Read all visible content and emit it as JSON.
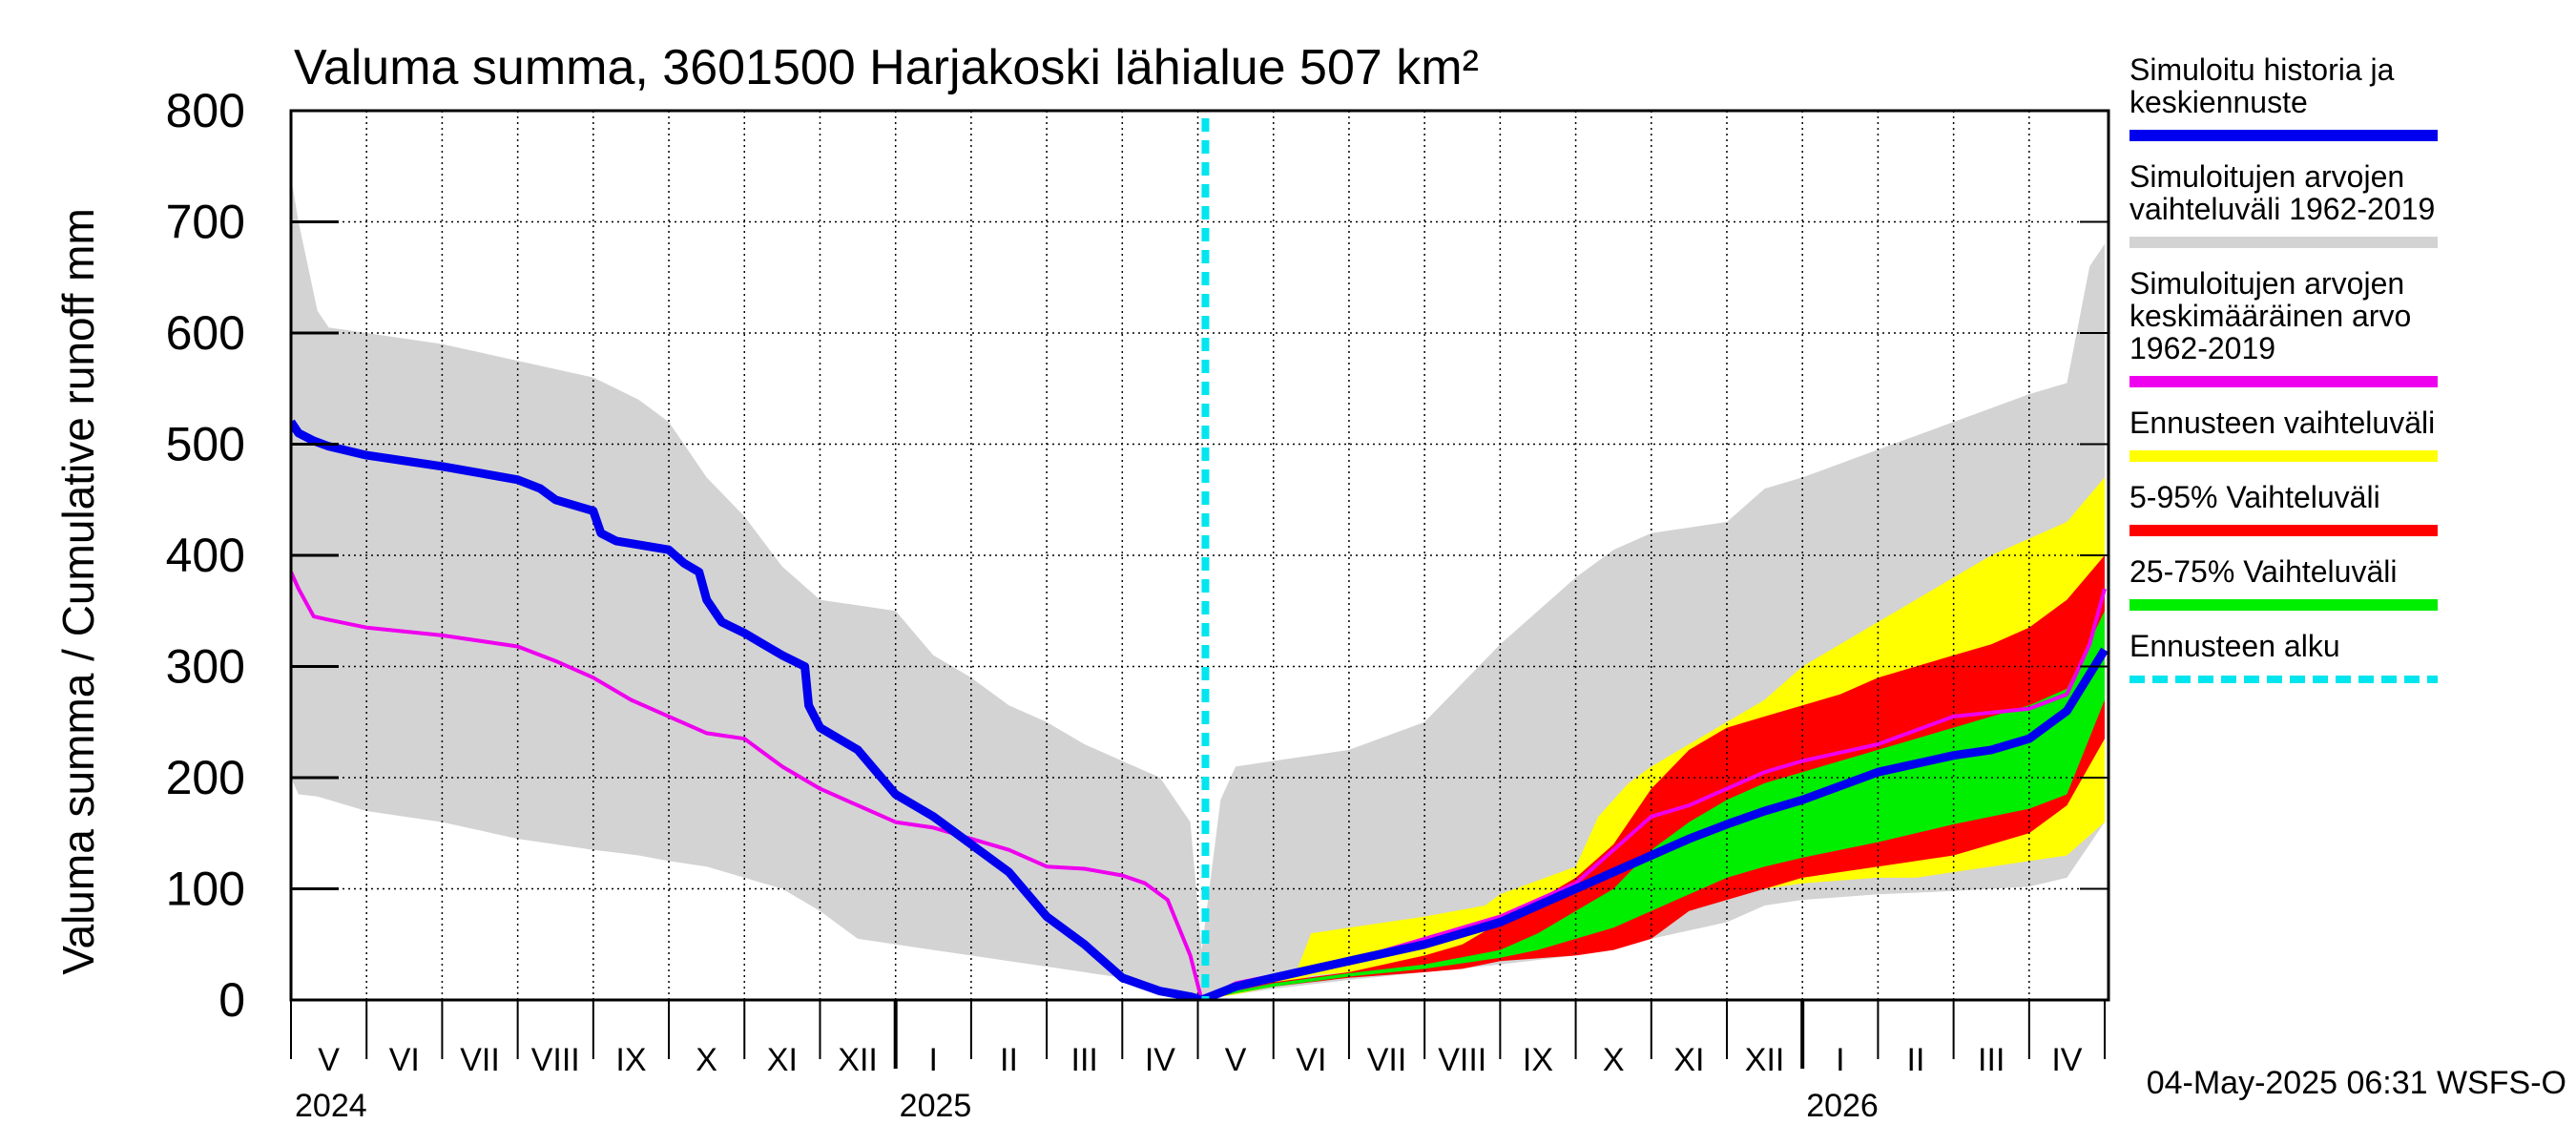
{
  "colors": {
    "history_band": "#d3d3d3",
    "forecast_range": "#ffff00",
    "range_5_95": "#ff0000",
    "range_25_75": "#00ee00",
    "simulated": "#0000ee",
    "mean": "#ee00ee",
    "forecast_start": "#00e5ee"
  },
  "chart_data": {
    "type": "area",
    "title": "Valuma summa, 3601500 Harjakoski lähialue 507 km²",
    "ylabel": "Valuma summa / Cumulative runoff    mm",
    "xlabel": "",
    "ylim": [
      0,
      800
    ],
    "yticks": [
      "0",
      "100",
      "200",
      "300",
      "400",
      "500",
      "600",
      "700",
      "800"
    ],
    "x_unit": "months since 2024-04-01",
    "xlim": [
      0,
      24.05
    ],
    "forecast_start": 12.1,
    "months": [
      "V",
      "VI",
      "VII",
      "VIII",
      "IX",
      "X",
      "XI",
      "XII",
      "I",
      "II",
      "III",
      "IV",
      "V",
      "VI",
      "VII",
      "VIII",
      "IX",
      "X",
      "XI",
      "XII",
      "I",
      "II",
      "III",
      "IV"
    ],
    "years": [
      {
        "label": "2024",
        "x": 0
      },
      {
        "label": "2025",
        "x": 8
      },
      {
        "label": "2026",
        "x": 20
      }
    ],
    "timestamp": "04-May-2025 06:31 WSFS-O",
    "legend": [
      {
        "id": "sim",
        "lines": [
          "Simuloitu historia ja",
          "keskiennuste"
        ],
        "style": "line",
        "color": "#0000ee"
      },
      {
        "id": "band",
        "lines": [
          "Simuloitujen arvojen",
          "vaihteluväli 1962-2019"
        ],
        "style": "line",
        "color": "#d3d3d3"
      },
      {
        "id": "mean",
        "lines": [
          "Simuloitujen arvojen",
          "keskimääräinen arvo",
          "   1962-2019"
        ],
        "style": "line",
        "color": "#ee00ee"
      },
      {
        "id": "frange",
        "lines": [
          "Ennusteen vaihteluväli"
        ],
        "style": "line",
        "color": "#ffff00"
      },
      {
        "id": "r595",
        "lines": [
          "5-95% Vaihteluväli"
        ],
        "style": "line",
        "color": "#ff0000"
      },
      {
        "id": "r2575",
        "lines": [
          "25-75% Vaihteluväli"
        ],
        "style": "line",
        "color": "#00ee00"
      },
      {
        "id": "fstart",
        "lines": [
          "Ennusteen alku"
        ],
        "style": "dashed",
        "color": "#00e5ee"
      }
    ],
    "series": [
      {
        "name": "Simuloitujen arvojen vaihteluväli 1962-2019",
        "kind": "band",
        "x": [
          0,
          0.1,
          0.35,
          0.5,
          1,
          2,
          3,
          4,
          4.6,
          5,
          5.5,
          6,
          6.5,
          7,
          7.5,
          8,
          8.5,
          9,
          9.5,
          10,
          10.5,
          11,
          11.5,
          11.9,
          12.05,
          12.3,
          12.5,
          13,
          14,
          15,
          16,
          17,
          17.5,
          18,
          19,
          19.5,
          20,
          21,
          22,
          23,
          23.5,
          23.8,
          24
        ],
        "upper": [
          740,
          700,
          620,
          605,
          600,
          590,
          575,
          560,
          540,
          520,
          470,
          435,
          390,
          360,
          355,
          350,
          310,
          290,
          265,
          250,
          230,
          215,
          200,
          160,
          45,
          180,
          210,
          215,
          225,
          250,
          320,
          380,
          405,
          420,
          430,
          460,
          470,
          495,
          520,
          545,
          555,
          660,
          680
        ],
        "lower": [
          200,
          185,
          183,
          180,
          170,
          160,
          145,
          135,
          130,
          125,
          120,
          110,
          100,
          80,
          55,
          50,
          45,
          40,
          35,
          30,
          25,
          20,
          12,
          5,
          0,
          3,
          5,
          10,
          18,
          25,
          32,
          40,
          45,
          55,
          70,
          85,
          90,
          95,
          98,
          102,
          110,
          140,
          160
        ]
      },
      {
        "name": "Ennusteen vaihteluväli",
        "kind": "band",
        "x": [
          12.05,
          12.5,
          13,
          13.3,
          13.5,
          14,
          15,
          15.8,
          16,
          17,
          17.3,
          17.7,
          18,
          18.5,
          19,
          19.5,
          20,
          21,
          21.5,
          22,
          22.5,
          23,
          23.5,
          24
        ],
        "upper": [
          0,
          8,
          18,
          25,
          60,
          65,
          75,
          85,
          95,
          120,
          165,
          195,
          210,
          230,
          250,
          270,
          300,
          340,
          360,
          380,
          400,
          415,
          430,
          470
        ],
        "lower": [
          0,
          5,
          12,
          17,
          22,
          25,
          30,
          35,
          38,
          45,
          50,
          60,
          70,
          90,
          95,
          100,
          105,
          110,
          110,
          115,
          120,
          125,
          130,
          160
        ]
      },
      {
        "name": "5-95% Vaihteluväli",
        "kind": "band",
        "x": [
          12.05,
          12.5,
          13,
          14,
          15,
          15.5,
          16,
          17,
          17.5,
          18,
          18.5,
          19,
          19.5,
          20,
          20.5,
          21,
          21.5,
          22,
          22.5,
          23,
          23.5,
          24
        ],
        "upper": [
          0,
          8,
          16,
          25,
          40,
          50,
          70,
          110,
          140,
          190,
          225,
          245,
          255,
          265,
          275,
          290,
          300,
          310,
          320,
          335,
          360,
          400
        ],
        "lower": [
          0,
          6,
          12,
          20,
          25,
          28,
          35,
          40,
          45,
          55,
          80,
          90,
          100,
          110,
          115,
          120,
          125,
          130,
          140,
          150,
          175,
          235
        ]
      },
      {
        "name": "25-75% Vaihteluväli",
        "kind": "band",
        "x": [
          12.05,
          12.5,
          13,
          14,
          15,
          16,
          16.5,
          17,
          17.5,
          18,
          18.5,
          19,
          19.5,
          20,
          20.5,
          21,
          21.5,
          22,
          22.5,
          23,
          23.5,
          24
        ],
        "upper": [
          0,
          8,
          15,
          24,
          32,
          45,
          60,
          80,
          100,
          135,
          160,
          180,
          195,
          205,
          215,
          225,
          235,
          245,
          255,
          265,
          280,
          350
        ],
        "lower": [
          0,
          6,
          12,
          21,
          28,
          38,
          45,
          55,
          65,
          80,
          95,
          110,
          120,
          128,
          135,
          142,
          150,
          158,
          165,
          172,
          185,
          270
        ]
      },
      {
        "name": "Simuloitujen arvojen keskimääräinen arvo 1962-2019",
        "kind": "line",
        "x": [
          0,
          0.1,
          0.3,
          0.5,
          1,
          2,
          3,
          3.5,
          4,
          4.5,
          5,
          5.5,
          6,
          6.2,
          6.5,
          7,
          7.5,
          8,
          8.5,
          9,
          9.5,
          10,
          10.5,
          11,
          11.3,
          11.6,
          11.9,
          12.05,
          12.5,
          13,
          14,
          15,
          16,
          17,
          17.5,
          18,
          18.5,
          19,
          19.5,
          20,
          21,
          22,
          23,
          23.5,
          23.8,
          24
        ],
        "y": [
          385,
          370,
          345,
          342,
          335,
          328,
          318,
          305,
          290,
          270,
          255,
          240,
          235,
          225,
          210,
          190,
          175,
          160,
          155,
          145,
          135,
          120,
          118,
          112,
          105,
          90,
          40,
          0,
          15,
          22,
          35,
          55,
          75,
          105,
          135,
          165,
          175,
          190,
          205,
          215,
          230,
          255,
          262,
          275,
          320,
          370
        ]
      },
      {
        "name": "Simuloitu historia ja keskiennuste",
        "kind": "line",
        "x": [
          0,
          0.1,
          0.3,
          0.5,
          1,
          2,
          3,
          3.3,
          3.5,
          4,
          4.1,
          4.3,
          5,
          5.2,
          5.4,
          5.5,
          5.7,
          6,
          6.3,
          6.5,
          6.8,
          6.85,
          7,
          7.5,
          8,
          8.5,
          9,
          9.5,
          10,
          10.5,
          11,
          11.5,
          11.9,
          12.05,
          12.5,
          13,
          14,
          15,
          16,
          17,
          18,
          18.5,
          19,
          19.5,
          20,
          21,
          22,
          22.5,
          23,
          23.5,
          24
        ],
        "y": [
          520,
          510,
          503,
          498,
          490,
          480,
          468,
          460,
          450,
          440,
          420,
          413,
          405,
          393,
          385,
          360,
          340,
          330,
          318,
          310,
          300,
          265,
          245,
          225,
          185,
          165,
          140,
          115,
          75,
          50,
          20,
          8,
          3,
          0,
          12,
          20,
          35,
          50,
          70,
          100,
          130,
          145,
          158,
          170,
          180,
          205,
          220,
          225,
          235,
          260,
          315
        ]
      }
    ]
  }
}
